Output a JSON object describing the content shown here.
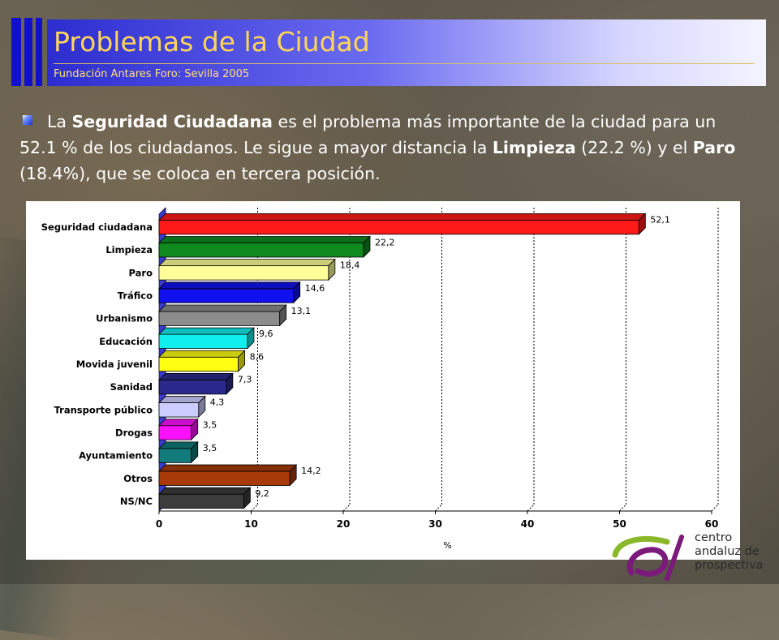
{
  "header": {
    "title": "Problemas de la Ciudad",
    "subtitle": "Fundación Antares Foro: Sevilla 2005"
  },
  "intro": {
    "part1": "La ",
    "bold1": "Seguridad Ciudadana",
    "part2": " es el problema más importante de la ciudad para un 52.1 % de los ciudadanos. Le sigue a mayor distancia la ",
    "bold2": "Limpieza",
    "part3": " (22.2 %) y el ",
    "bold3": "Paro",
    "part4": " (18.4%), que se coloca en tercera posición."
  },
  "chart_data": {
    "type": "bar",
    "orientation": "horizontal",
    "categories": [
      "Seguridad ciudadana",
      "Limpieza",
      "Paro",
      "Tráfico",
      "Urbanismo",
      "Educación",
      "Movida juvenil",
      "Sanidad",
      "Transporte público",
      "Drogas",
      "Ayuntamiento",
      "Otros",
      "NS/NC"
    ],
    "values": [
      52.1,
      22.2,
      18.4,
      14.6,
      13.1,
      9.6,
      8.6,
      7.3,
      4.3,
      3.5,
      3.5,
      14.2,
      9.2
    ],
    "value_labels": [
      "52,1",
      "22,2",
      "18,4",
      "14,6",
      "13,1",
      "9,6",
      "8,6",
      "7,3",
      "4,3",
      "3,5",
      "3,5",
      "14,2",
      "9,2"
    ],
    "colors": [
      "#ff1a1a",
      "#0e8a1e",
      "#ffff99",
      "#1111ee",
      "#8c8c8c",
      "#11eeee",
      "#ffff11",
      "#2a2a8c",
      "#ccccff",
      "#ff11ff",
      "#117a7a",
      "#a83a0a",
      "#3c3c3c"
    ],
    "xlabel": "%",
    "xlim": [
      0,
      60
    ],
    "ticks": [
      0,
      10,
      20,
      30,
      40,
      50,
      60
    ],
    "grid": true,
    "title": "",
    "ylabel": ""
  },
  "logo": {
    "line1": "centro",
    "line2": "andaluz de",
    "line3": "prospectiva"
  }
}
